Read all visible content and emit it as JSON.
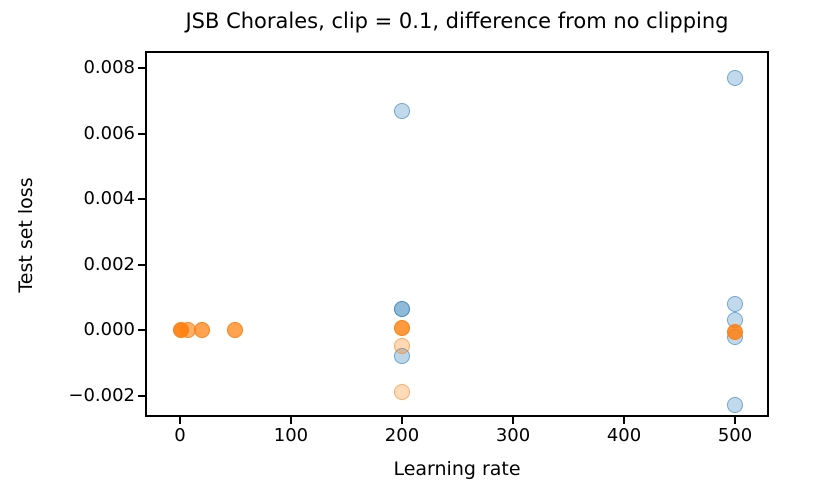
{
  "chart_data": {
    "type": "scatter",
    "title": "JSB Chorales, clip = 0.1, difference from no clipping",
    "xlabel": "Learning rate",
    "ylabel": "Test set loss",
    "xlim": [
      -31.5,
      530.6
    ],
    "ylim": [
      -0.002656,
      0.008519
    ],
    "grid": false,
    "legend_visible": false,
    "x_ticks": [
      {
        "value": 0,
        "label": "0"
      },
      {
        "value": 100,
        "label": "100"
      },
      {
        "value": 200,
        "label": "200"
      },
      {
        "value": 300,
        "label": "300"
      },
      {
        "value": 400,
        "label": "400"
      },
      {
        "value": 500,
        "label": "500"
      }
    ],
    "y_ticks": [
      {
        "value": 0.008,
        "label": "0.008"
      },
      {
        "value": 0.006,
        "label": "0.006"
      },
      {
        "value": 0.004,
        "label": "0.004"
      },
      {
        "value": 0.002,
        "label": "0.002"
      },
      {
        "value": 0.0,
        "label": "0.000"
      },
      {
        "value": -0.002,
        "label": "−0.002"
      }
    ],
    "marker_diameter_px": 16,
    "series": [
      {
        "name": "blue-runs",
        "color": "#1f77b4",
        "points": [
          {
            "x": 200,
            "y": 0.0067,
            "alpha": 0.28
          },
          {
            "x": 200,
            "y": 0.00065,
            "alpha": 0.5
          },
          {
            "x": 200,
            "y": -0.0008,
            "alpha": 0.3
          },
          {
            "x": 500,
            "y": 0.0077,
            "alpha": 0.28
          },
          {
            "x": 500,
            "y": 0.0008,
            "alpha": 0.28
          },
          {
            "x": 500,
            "y": 0.0003,
            "alpha": 0.28
          },
          {
            "x": 500,
            "y": -0.0002,
            "alpha": 0.28
          },
          {
            "x": 500,
            "y": -0.0023,
            "alpha": 0.28
          }
        ]
      },
      {
        "name": "orange-runs",
        "color": "#ff7f0e",
        "points": [
          {
            "x": 1,
            "y": 0.0,
            "alpha": 0.92
          },
          {
            "x": 7,
            "y": 0.0,
            "alpha": 0.62
          },
          {
            "x": 20,
            "y": 0.0,
            "alpha": 0.72
          },
          {
            "x": 50,
            "y": 0.0,
            "alpha": 0.72
          },
          {
            "x": 200,
            "y": 5e-05,
            "alpha": 0.8
          },
          {
            "x": 200,
            "y": -0.0005,
            "alpha": 0.3
          },
          {
            "x": 200,
            "y": -0.0019,
            "alpha": 0.28
          },
          {
            "x": 500,
            "y": -5e-05,
            "alpha": 0.85
          }
        ]
      }
    ]
  }
}
